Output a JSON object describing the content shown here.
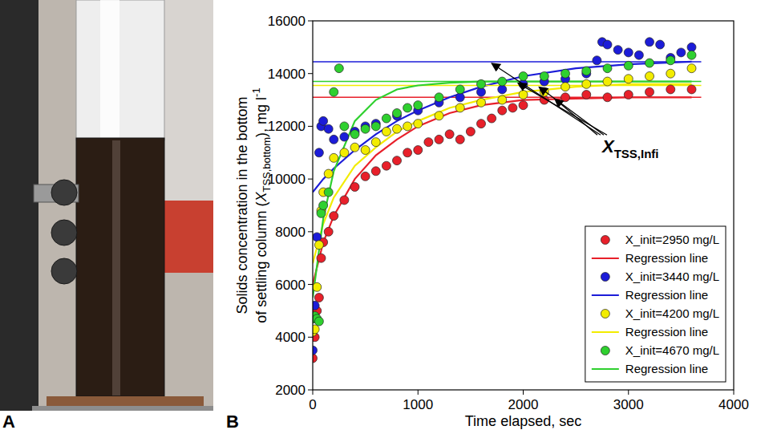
{
  "panel_labels": [
    "A",
    "B"
  ],
  "chart_data": {
    "type": "scatter",
    "x_label": "Time elapsed, sec",
    "y_label": {
      "line1": "Solids concentration in the bottom",
      "line2": [
        {
          "t": "of settling column (",
          "style": "normal"
        },
        {
          "t": "X",
          "style": "italic"
        },
        {
          "t": "TSS,bottom",
          "style": "sub"
        },
        {
          "t": "), mg l",
          "style": "normal"
        },
        {
          "t": "-1",
          "style": "sup"
        }
      ]
    },
    "annotation": [
      {
        "t": "X",
        "style": "italic"
      },
      {
        "t": "TSS,Infi",
        "style": "sub"
      }
    ],
    "xlim": [
      0,
      4000
    ],
    "xticks": [
      0,
      1000,
      2000,
      3000,
      4000
    ],
    "ylim": [
      2000,
      16000
    ],
    "yticks": [
      2000,
      4000,
      6000,
      8000,
      10000,
      12000,
      14000,
      16000
    ],
    "grid": false,
    "legend": "lower right",
    "series": [
      {
        "name": "X_init=2950 mg/L",
        "type": "scatter",
        "marker": "circle",
        "color": "#e8202a",
        "x": [
          0,
          20,
          40,
          60,
          80,
          100,
          150,
          200,
          300,
          400,
          500,
          600,
          700,
          800,
          900,
          1000,
          1100,
          1200,
          1300,
          1400,
          1500,
          1600,
          1700,
          1800,
          1900,
          2000,
          2200,
          2400,
          2600,
          2800,
          3000,
          3200,
          3400,
          3600
        ],
        "values": [
          3200,
          4000,
          5000,
          5500,
          7000,
          7600,
          8000,
          8600,
          9200,
          9700,
          10100,
          10300,
          10500,
          10700,
          11000,
          11100,
          11400,
          11500,
          11700,
          11500,
          11800,
          12100,
          12300,
          12600,
          12700,
          12800,
          13000,
          13100,
          13200,
          13100,
          13200,
          13300,
          13400,
          13400
        ]
      },
      {
        "name": "Regression line",
        "type": "line",
        "line_style": "solid",
        "color": "#e8202a",
        "x": [
          0,
          100,
          200,
          400,
          600,
          800,
          1000,
          1300,
          1600,
          2000,
          2500,
          3000,
          3600
        ],
        "values": [
          6000,
          7600,
          8600,
          10000,
          10900,
          11500,
          12000,
          12500,
          12800,
          13000,
          13050,
          13100,
          13100
        ],
        "asymptote": 13100
      },
      {
        "name": "X_init=3440 mg/L",
        "type": "scatter",
        "marker": "circle",
        "color": "#1c1cd8",
        "x": [
          0,
          20,
          40,
          60,
          80,
          100,
          150,
          200,
          300,
          400,
          500,
          600,
          800,
          1000,
          1200,
          1400,
          1600,
          1800,
          2000,
          2200,
          2400,
          2600,
          2700,
          2750,
          2800,
          2900,
          3000,
          3100,
          3200,
          3300,
          3400,
          3500,
          3600
        ],
        "values": [
          3500,
          5200,
          7800,
          11000,
          12000,
          12200,
          11900,
          11500,
          11600,
          11800,
          12000,
          12100,
          12400,
          12600,
          12900,
          13100,
          13300,
          13400,
          13600,
          13700,
          13800,
          14000,
          14500,
          15200,
          15100,
          14900,
          14800,
          14700,
          15200,
          15100,
          14600,
          14800,
          15000
        ]
      },
      {
        "name": "Regression line",
        "type": "line",
        "line_style": "solid",
        "color": "#1c1cd8",
        "x": [
          0,
          100,
          200,
          400,
          600,
          800,
          1000,
          1300,
          1600,
          2000,
          2500,
          3000,
          3600
        ],
        "values": [
          9500,
          10000,
          10400,
          11100,
          11700,
          12200,
          12600,
          13100,
          13500,
          13900,
          14200,
          14350,
          14450
        ],
        "asymptote": 14450
      },
      {
        "name": "X_init=4200 mg/L",
        "type": "scatter",
        "marker": "circle",
        "color": "#f2ec00",
        "x": [
          0,
          20,
          40,
          60,
          80,
          100,
          150,
          200,
          300,
          400,
          500,
          600,
          700,
          800,
          900,
          1000,
          1200,
          1400,
          1600,
          1800,
          2000,
          2200,
          2400,
          2600,
          2800,
          3000,
          3200,
          3400,
          3600
        ],
        "values": [
          4200,
          4300,
          5900,
          7500,
          8800,
          9500,
          10200,
          10800,
          11000,
          11200,
          11100,
          11400,
          11800,
          11900,
          12000,
          12100,
          12400,
          12700,
          12900,
          13000,
          13200,
          13300,
          13500,
          13600,
          13700,
          13800,
          13900,
          14000,
          14200
        ]
      },
      {
        "name": "Regression line",
        "type": "line",
        "line_style": "solid",
        "color": "#f2ec00",
        "x": [
          0,
          100,
          200,
          400,
          600,
          800,
          1000,
          1300,
          1600,
          2000,
          2500,
          3000,
          3600
        ],
        "values": [
          6800,
          8300,
          9300,
          10500,
          11200,
          11800,
          12200,
          12700,
          13000,
          13300,
          13500,
          13600,
          13600
        ],
        "asymptote": 13550
      },
      {
        "name": "X_init=4670 mg/L",
        "type": "scatter",
        "marker": "circle",
        "color": "#2fd02f",
        "x": [
          0,
          20,
          40,
          60,
          80,
          100,
          150,
          200,
          250,
          300,
          400,
          500,
          600,
          700,
          800,
          900,
          1000,
          1200,
          1400,
          1600,
          1800,
          2000,
          2200,
          2400,
          2600,
          2800,
          3000,
          3200,
          3400,
          3600
        ],
        "values": [
          4700,
          4800,
          4700,
          4600,
          8700,
          9000,
          9500,
          13300,
          14200,
          12000,
          11700,
          11900,
          12000,
          12300,
          12500,
          12700,
          12800,
          13100,
          13400,
          13600,
          13700,
          13900,
          13900,
          14000,
          14100,
          14200,
          14300,
          14400,
          14500,
          14700
        ]
      },
      {
        "name": "Regression line",
        "type": "line",
        "line_style": "solid",
        "color": "#2fd02f",
        "x": [
          0,
          100,
          200,
          400,
          600,
          800,
          1000,
          1300,
          1600,
          2000,
          2500,
          3000,
          3600
        ],
        "values": [
          5500,
          8500,
          10300,
          12200,
          13000,
          13400,
          13550,
          13650,
          13700,
          13700,
          13700,
          13700,
          13700
        ],
        "asymptote": 13700
      }
    ]
  }
}
